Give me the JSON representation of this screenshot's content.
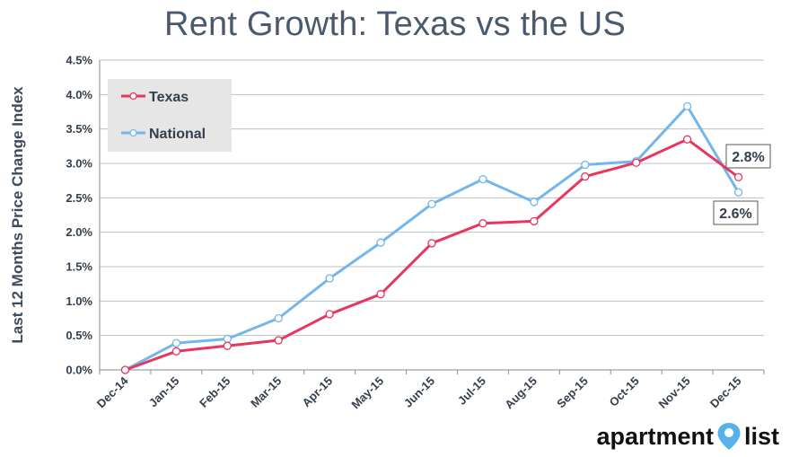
{
  "page": {
    "title": "Rent Growth: Texas vs the US"
  },
  "logo": {
    "brand_left": "apartment",
    "brand_right": "list",
    "pin_icon": "map-pin-icon",
    "pin_color": "#56b2ea"
  },
  "chart_data": {
    "type": "line",
    "title": "Rent Growth: Texas vs the US",
    "ylabel": "Last 12 Months Price Change Index",
    "xlabel": "",
    "ylim": [
      0,
      4.5
    ],
    "yticks": [
      0,
      0.5,
      1.0,
      1.5,
      2.0,
      2.5,
      3.0,
      3.5,
      4.0,
      4.5
    ],
    "ytick_labels": [
      "0.0%",
      "0.5%",
      "1.0%",
      "1.5%",
      "2.0%",
      "2.5%",
      "3.0%",
      "3.5%",
      "4.0%",
      "4.5%"
    ],
    "grid": true,
    "legend_position": "top-left",
    "categories": [
      "Dec-14",
      "Jan-15",
      "Feb-15",
      "Mar-15",
      "Apr-15",
      "May-15",
      "Jun-15",
      "Jul-15",
      "Aug-15",
      "Sep-15",
      "Oct-15",
      "Nov-15",
      "Dec-15"
    ],
    "series": [
      {
        "name": "Texas",
        "color": "#e8365c",
        "values": [
          0.0,
          0.27,
          0.35,
          0.43,
          0.81,
          1.1,
          1.84,
          2.13,
          2.16,
          2.81,
          3.01,
          3.35,
          2.8
        ]
      },
      {
        "name": "National",
        "color": "#72b6ec",
        "values": [
          0.0,
          0.39,
          0.45,
          0.75,
          1.33,
          1.85,
          2.41,
          2.77,
          2.44,
          2.98,
          3.03,
          3.83,
          2.58
        ]
      }
    ],
    "annotations": [
      {
        "label": "2.8%",
        "series": "Texas",
        "category": "Dec-15"
      },
      {
        "label": "2.6%",
        "series": "National",
        "category": "Dec-15"
      }
    ]
  }
}
